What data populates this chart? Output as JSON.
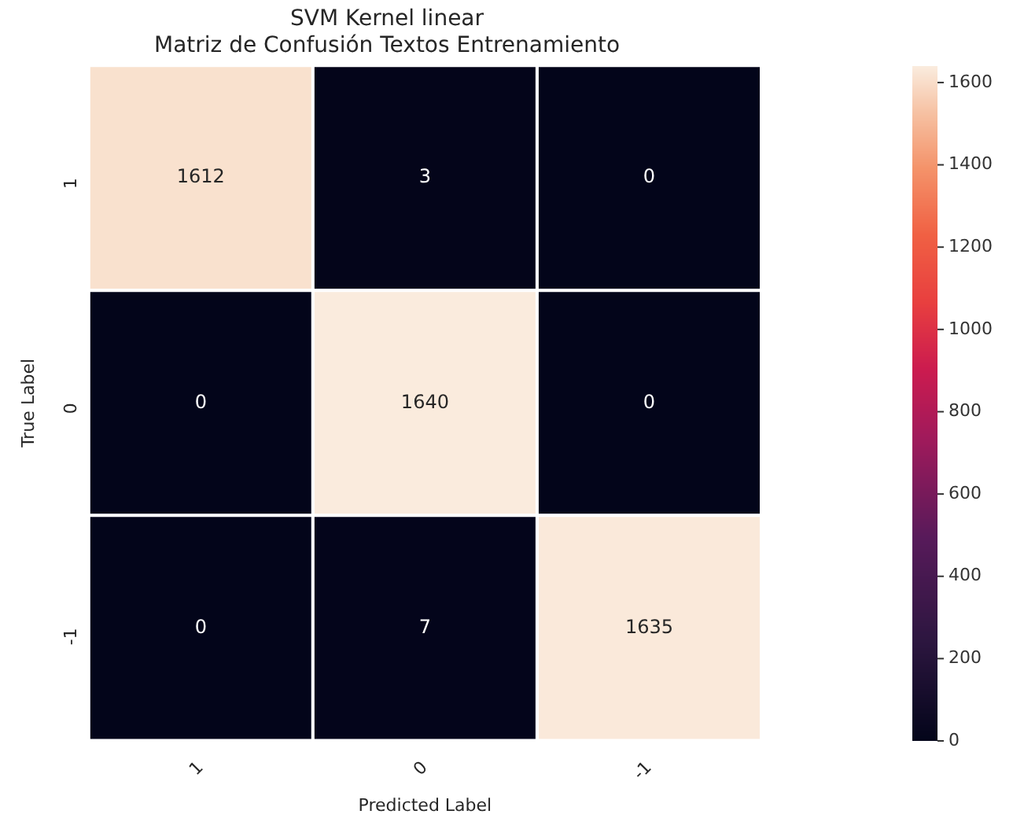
{
  "chart_data": {
    "type": "heatmap",
    "title": "SVM Kernel linear\nMatriz de Confusión Textos Entrenamiento",
    "xlabel": "Predicted Label",
    "ylabel": "True Label",
    "categories": [
      "1",
      "0",
      "-1"
    ],
    "y_categories": [
      "1",
      "0",
      "-1"
    ],
    "cells": [
      [
        1612,
        3,
        0
      ],
      [
        0,
        1640,
        0
      ],
      [
        0,
        7,
        1635
      ]
    ],
    "clim": [
      0,
      1640
    ],
    "cticks": [
      0,
      200,
      400,
      600,
      800,
      1000,
      1200,
      1400,
      1600
    ],
    "data_labels": true
  }
}
